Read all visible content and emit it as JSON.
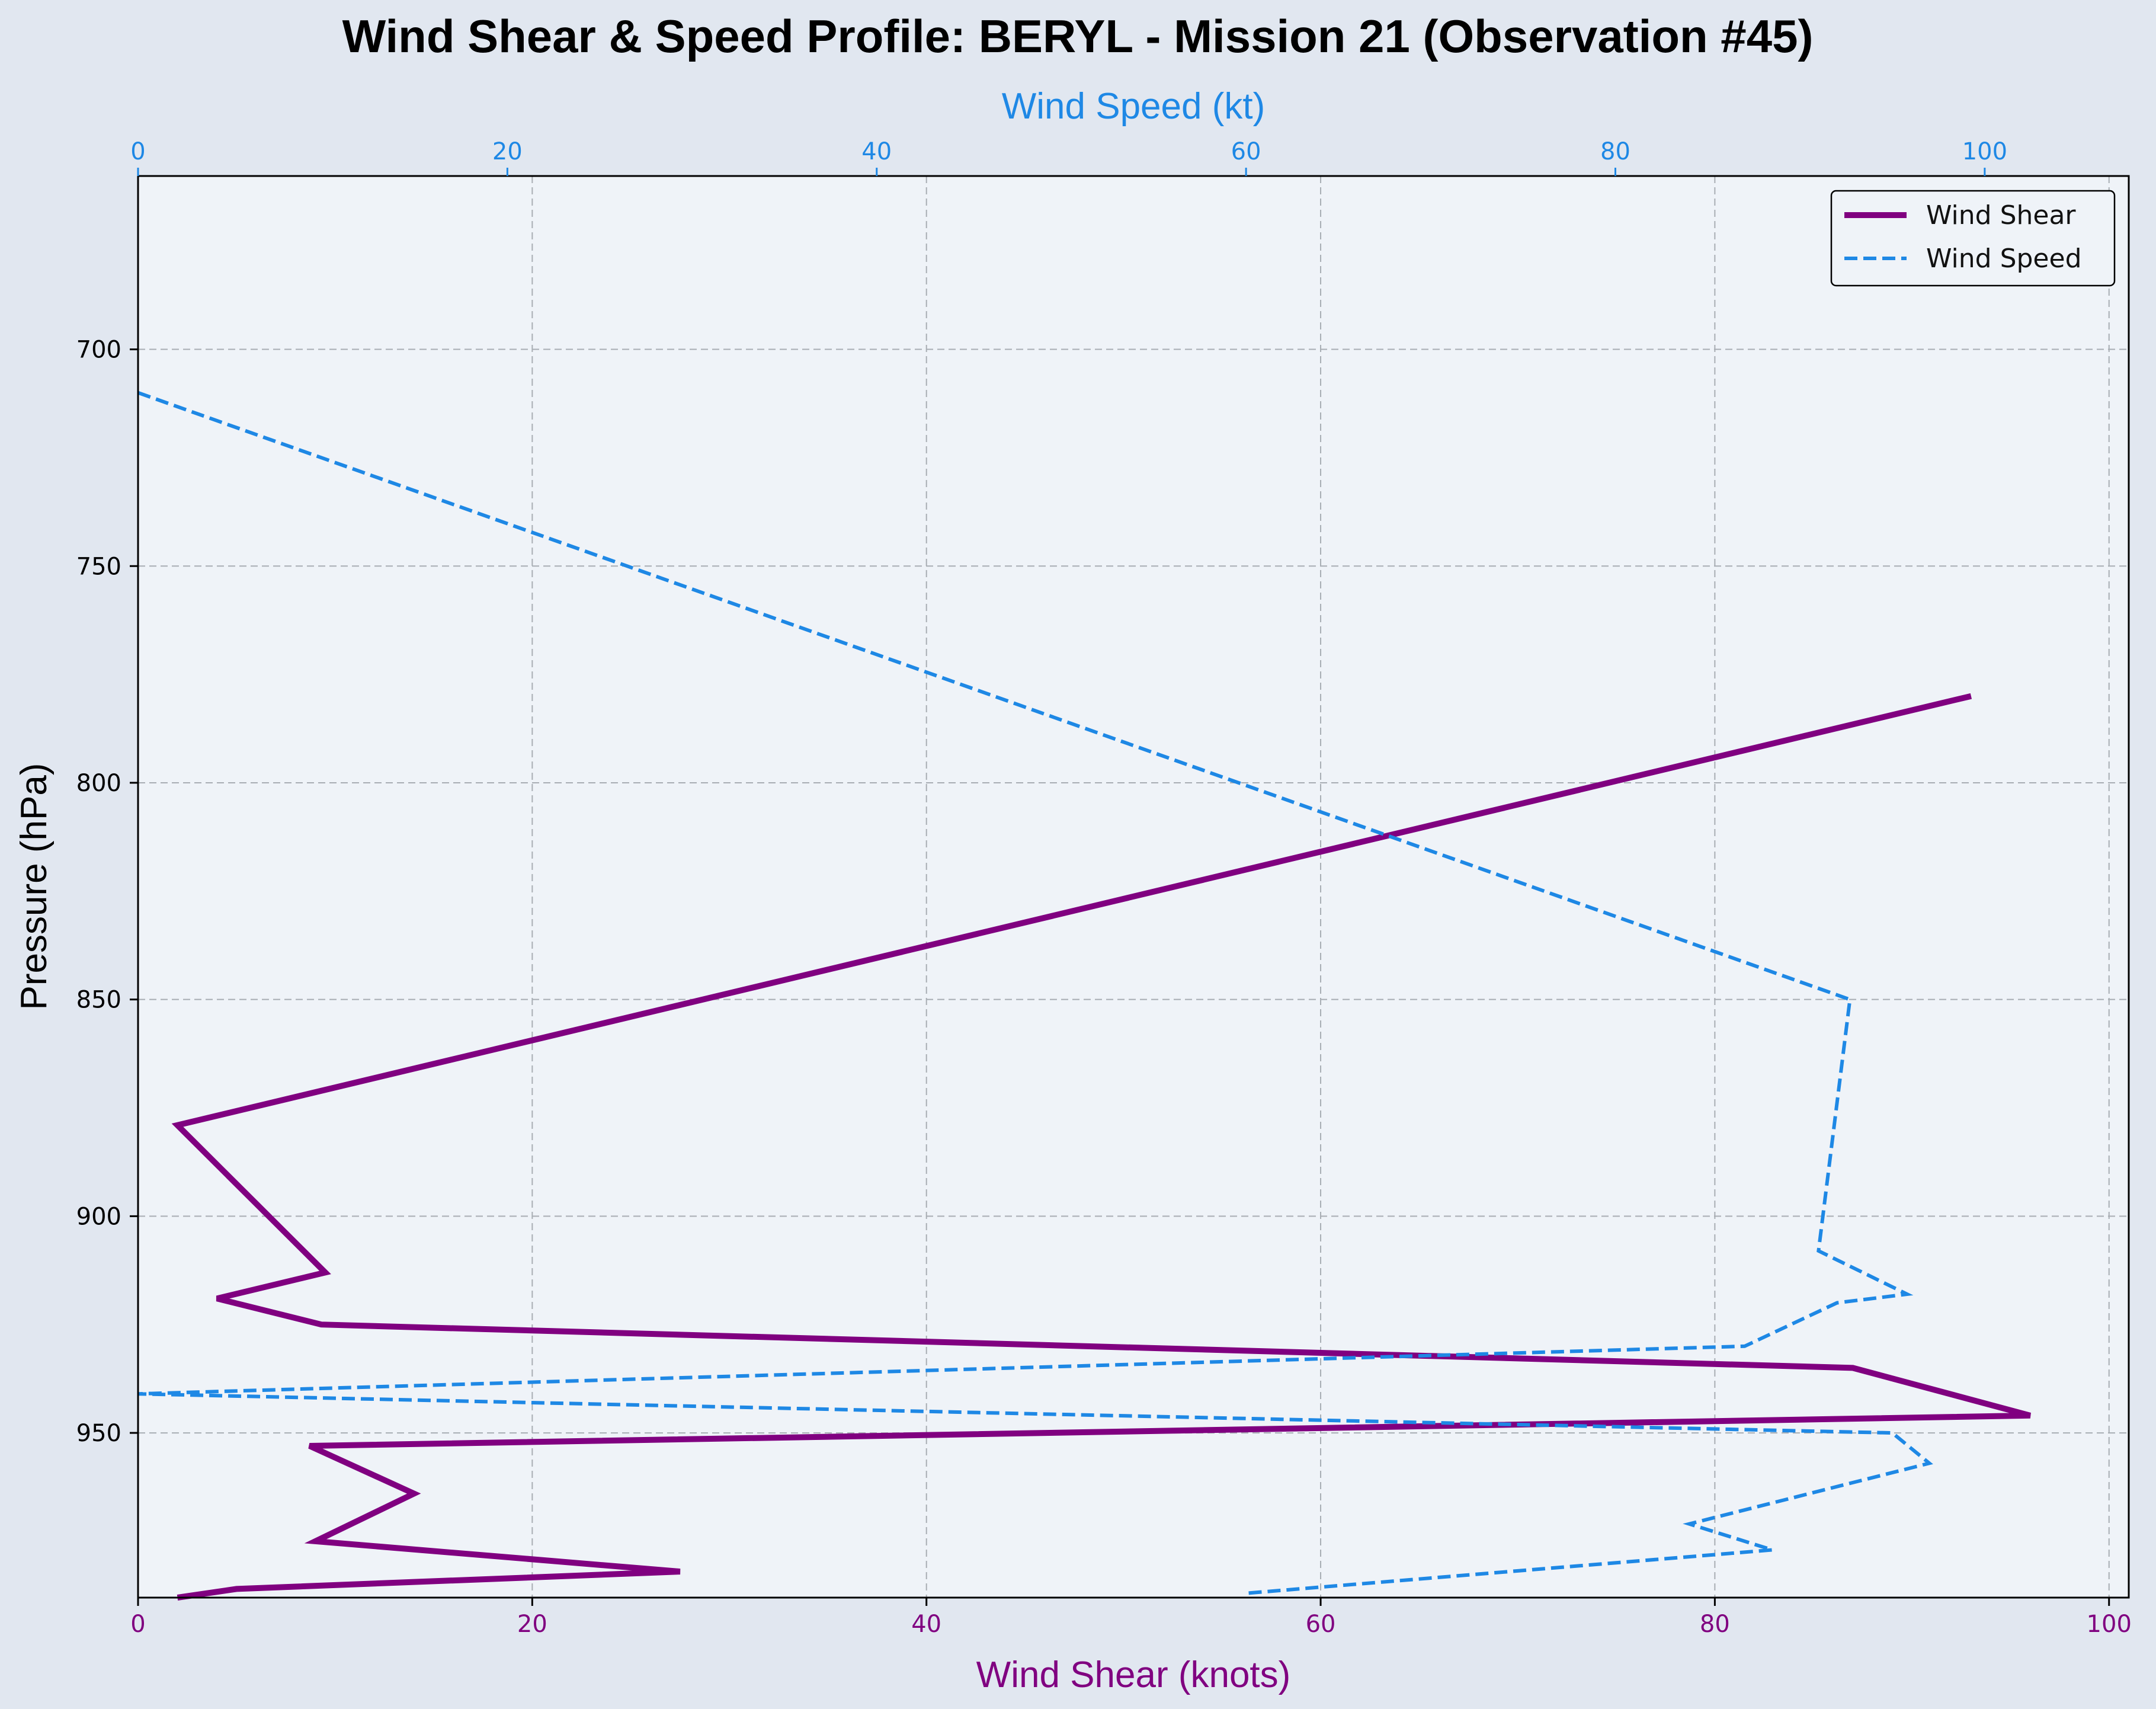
{
  "chart_data": {
    "type": "line",
    "title": "Wind Shear & Speed Profile: BERYL - Mission 21 (Observation #45)",
    "ylabel": "Pressure (hPa)",
    "x_bottom_label": "Wind Shear (knots)",
    "x_top_label": "Wind Speed (kt)",
    "ylim": [
      660,
      988
    ],
    "y_inverted": true,
    "y_ticks": [
      700,
      750,
      800,
      850,
      900,
      950
    ],
    "x_bottom_lim": [
      0,
      101
    ],
    "x_bottom_ticks": [
      0,
      20,
      40,
      60,
      80,
      100
    ],
    "x_top_lim": [
      0,
      107.8
    ],
    "x_top_ticks": [
      0,
      20,
      40,
      60,
      80,
      100
    ],
    "grid": true,
    "legend_position": "top-right",
    "series": [
      {
        "name": "Wind Shear",
        "axis": "bottom",
        "style": "solid",
        "color": "#800080",
        "x": [
          93.0,
          2.0,
          9.5,
          4.0,
          9.3,
          87.0,
          96.0,
          8.7,
          14.0,
          9.0,
          27.5,
          5.0,
          2.0
        ],
        "y": [
          780,
          879,
          913,
          919,
          925,
          935,
          946,
          953,
          964,
          975,
          982,
          986,
          988
        ]
      },
      {
        "name": "Wind Speed",
        "axis": "top",
        "style": "dashed",
        "color": "#1e88e5",
        "x": [
          0,
          92.7,
          91.0,
          95.8,
          92.0,
          87.0,
          0,
          95.0,
          97.0,
          84.0,
          88.5,
          60.0
        ],
        "y": [
          710,
          850,
          908,
          918,
          920,
          930,
          941,
          950,
          957,
          971,
          977,
          987
        ]
      }
    ]
  }
}
